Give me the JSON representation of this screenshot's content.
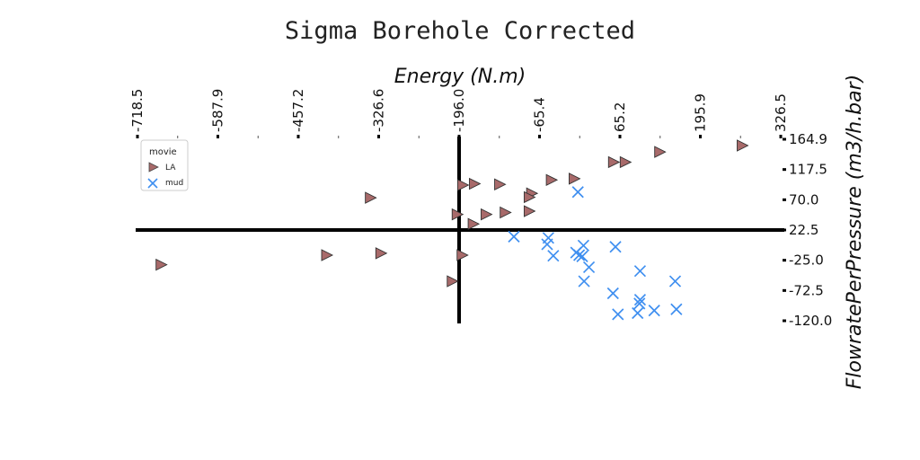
{
  "chart_data": {
    "type": "scatter",
    "title": "Sigma Borehole Corrected",
    "xlabel": "Energy (N.m)",
    "ylabel": "FlowratePerPressure (m3/h.bar)",
    "xlim": [
      -718.5,
      326.5
    ],
    "ylim": [
      -120.0,
      164.9
    ],
    "x_ticks": [
      "-718.5",
      "-587.9",
      "-457.2",
      "-326.6",
      "-196.0",
      "-65.4",
      "65.2",
      "195.9",
      "326.5"
    ],
    "y_ticks": [
      "164.9",
      "117.5",
      "70.0",
      "22.5",
      "-25.0",
      "-72.5",
      "-120.0"
    ],
    "legend": {
      "title": "movie",
      "position": "top-left"
    },
    "series": [
      {
        "name": "LA",
        "color": "#a86a6a",
        "marker": "triangle-right",
        "points": [
          [
            -681,
            -32
          ],
          [
            -412,
            -17
          ],
          [
            -324,
            -14
          ],
          [
            -192,
            -17
          ],
          [
            -208,
            -58
          ],
          [
            -341,
            73
          ],
          [
            -191,
            93
          ],
          [
            -172,
            95
          ],
          [
            -131,
            94
          ],
          [
            -79,
            80
          ],
          [
            -83,
            74
          ],
          [
            -47,
            101
          ],
          [
            -10,
            103
          ],
          [
            54,
            129
          ],
          [
            73,
            129
          ],
          [
            129,
            145
          ],
          [
            263,
            155
          ],
          [
            -200,
            47
          ],
          [
            -153,
            47
          ],
          [
            -122,
            50
          ],
          [
            -83,
            52
          ],
          [
            -174,
            32
          ]
        ]
      },
      {
        "name": "mud",
        "color": "#3f8ff0",
        "marker": "x",
        "points": [
          [
            -107,
            12
          ],
          [
            -51,
            10
          ],
          [
            -53,
            0
          ],
          [
            -43,
            -18
          ],
          [
            -3,
            82
          ],
          [
            -6,
            -13
          ],
          [
            -1,
            -17
          ],
          [
            4,
            -19
          ],
          [
            6,
            -2
          ],
          [
            15,
            -36
          ],
          [
            58,
            -4
          ],
          [
            98,
            -42
          ],
          [
            7,
            -58
          ],
          [
            54,
            -77
          ],
          [
            155,
            -58
          ],
          [
            98,
            -87
          ],
          [
            97,
            -93
          ],
          [
            62,
            -110
          ],
          [
            94,
            -108
          ],
          [
            121,
            -104
          ],
          [
            157,
            -102
          ]
        ]
      }
    ]
  }
}
